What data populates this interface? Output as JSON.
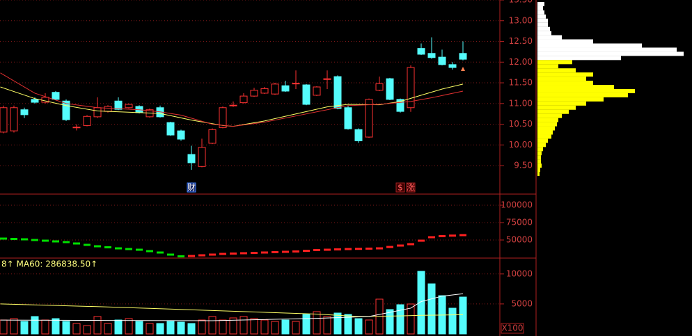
{
  "chart_data": [
    {
      "type": "candlestick",
      "open": [
        10.31,
        10.34,
        10.85,
        11.1,
        11.03,
        11.27,
        11.06,
        10.42,
        10.47,
        10.68,
        10.81,
        11.06,
        10.9,
        10.93,
        10.68,
        10.9,
        10.54,
        10.34,
        9.77,
        9.48,
        10.04,
        10.42,
        10.95,
        11.02,
        11.18,
        11.25,
        11.23,
        11.43,
        11.48,
        11.45,
        11.2,
        11.58,
        11.65,
        10.9,
        10.37,
        10.19,
        11.32,
        11.6,
        11.1,
        10.9,
        12.33,
        12.21,
        12.12,
        11.94,
        12.21
      ],
      "high": [
        10.95,
        10.95,
        10.9,
        11.15,
        11.25,
        11.3,
        11.1,
        10.5,
        10.72,
        11.15,
        10.96,
        11.15,
        11.0,
        10.96,
        10.88,
        10.95,
        10.56,
        10.37,
        9.98,
        10.15,
        10.4,
        10.93,
        11.05,
        11.25,
        11.38,
        11.4,
        11.5,
        11.55,
        11.8,
        11.47,
        11.42,
        11.8,
        11.68,
        10.95,
        10.4,
        11.12,
        11.65,
        11.62,
        11.12,
        11.92,
        12.45,
        12.6,
        12.3,
        12.0,
        12.5
      ],
      "low": [
        10.28,
        10.3,
        10.65,
        11.0,
        11.0,
        11.08,
        10.58,
        10.35,
        10.45,
        10.65,
        10.78,
        10.84,
        10.88,
        10.76,
        10.66,
        10.66,
        10.22,
        10.1,
        9.4,
        9.46,
        10.02,
        10.4,
        10.92,
        11.0,
        11.16,
        11.23,
        11.21,
        11.28,
        11.35,
        10.96,
        11.18,
        11.35,
        10.86,
        10.37,
        10.05,
        10.17,
        11.3,
        11.08,
        10.78,
        10.8,
        12.17,
        12.08,
        11.92,
        11.82,
        12.04
      ],
      "close": [
        10.9,
        10.9,
        10.73,
        11.03,
        11.15,
        11.1,
        10.61,
        10.43,
        10.69,
        10.9,
        10.93,
        10.86,
        10.98,
        10.78,
        10.85,
        10.68,
        10.24,
        10.14,
        9.57,
        9.94,
        10.37,
        10.9,
        10.96,
        11.18,
        11.32,
        11.36,
        11.47,
        11.3,
        11.49,
        10.98,
        11.4,
        11.6,
        10.88,
        10.39,
        10.1,
        11.1,
        11.48,
        11.1,
        10.81,
        11.87,
        12.19,
        12.11,
        11.94,
        11.87,
        12.07
      ],
      "up_color": "#ff3232",
      "down_color": "#54fcfc",
      "ylim": [
        8.83,
        13.5
      ],
      "yticks": [
        {
          "value": 9.5,
          "label": "9.50"
        },
        {
          "value": 10,
          "label": "10.00"
        },
        {
          "value": 10.5,
          "label": "10.50"
        },
        {
          "value": 11,
          "label": "11.00"
        },
        {
          "value": 11.5,
          "label": "11.50"
        },
        {
          "value": 12,
          "label": "12.00"
        },
        {
          "value": 12.5,
          "label": "12.50"
        },
        {
          "value": 13,
          "label": "13.00"
        },
        {
          "value": 13.5,
          "label": "13.50"
        }
      ],
      "grid": true,
      "lines": [
        {
          "color": "#ffff66",
          "x": [
            -0.3,
            3,
            6,
            9,
            13,
            15,
            18,
            21,
            22,
            25,
            28,
            31,
            33,
            36,
            38,
            40,
            42,
            44
          ],
          "values": [
            11.4,
            11.12,
            10.95,
            10.82,
            10.78,
            10.76,
            10.6,
            10.47,
            10.45,
            10.58,
            10.75,
            10.92,
            10.98,
            10.97,
            11.05,
            11.2,
            11.35,
            11.47
          ]
        },
        {
          "color": "#e03030",
          "x": [
            -0.3,
            3,
            6,
            9,
            13,
            15,
            17,
            20,
            22,
            25,
            28,
            31,
            33,
            36,
            39,
            41,
            44
          ],
          "values": [
            11.74,
            11.25,
            11.0,
            10.9,
            10.85,
            10.8,
            10.72,
            10.5,
            10.45,
            10.55,
            10.7,
            10.85,
            10.95,
            10.98,
            11.05,
            11.14,
            11.3
          ]
        }
      ],
      "annotations": [
        {
          "index": 18,
          "label": "财"
        },
        {
          "index": 38,
          "label": "$"
        },
        {
          "index": 39,
          "label": "涨"
        }
      ],
      "volume_profile": {
        "prices": [
          13.4,
          13.3,
          13.2,
          13.1,
          13.0,
          12.9,
          12.8,
          12.7,
          12.6,
          12.5,
          12.4,
          12.3,
          12.2,
          12.1,
          12.0,
          11.9,
          11.8,
          11.7,
          11.6,
          11.5,
          11.4,
          11.3,
          11.2,
          11.1,
          11.0,
          10.9,
          10.8,
          10.7,
          10.6,
          10.5,
          10.4,
          10.3,
          10.2,
          10.1,
          10.0,
          9.9,
          9.8,
          9.7,
          9.6,
          9.5,
          9.4,
          9.3
        ],
        "values": [
          10,
          8,
          10,
          12,
          15,
          15,
          18,
          20,
          35,
          80,
          150,
          200,
          210,
          120,
          50,
          30,
          55,
          80,
          70,
          80,
          110,
          140,
          130,
          95,
          70,
          55,
          45,
          35,
          30,
          28,
          25,
          22,
          20,
          15,
          12,
          8,
          6,
          5,
          5,
          6,
          4,
          3
        ],
        "upper_color": "#ffffff",
        "lower_color": "#ffff00",
        "split_price": 12.05
      }
    },
    {
      "type": "line",
      "values": [
        52000,
        51500,
        51000,
        50000,
        49000,
        48000,
        47000,
        45000,
        43000,
        41000,
        39500,
        38000,
        37000,
        36000,
        34000,
        32000,
        29000,
        26500,
        27000,
        28000,
        29000,
        30000,
        30500,
        31000,
        31500,
        32000,
        32500,
        33000,
        33500,
        34500,
        35500,
        36000,
        36500,
        37000,
        37300,
        37600,
        38000,
        40000,
        42000,
        44000,
        49000,
        54000,
        55500,
        56300,
        57000
      ],
      "rise_color": "#ff2020",
      "fall_color": "#00e000",
      "ylim": [
        25000,
        115000
      ],
      "yticks": [
        50000,
        75000,
        100000
      ],
      "grid": true
    },
    {
      "type": "bar",
      "values": [
        2320,
        2552,
        2088,
        2900,
        2320,
        2552,
        2088,
        1740,
        1392,
        2900,
        1740,
        2320,
        2552,
        2088,
        1740,
        1740,
        2088,
        1972,
        1740,
        2320,
        2900,
        2320,
        2668,
        2900,
        2552,
        2320,
        2088,
        2320,
        2088,
        3248,
        3712,
        2900,
        3480,
        3248,
        2552,
        2320,
        5800,
        4060,
        4872,
        4988,
        10440,
        8352,
        6380,
        4292,
        6148
      ],
      "ylim": [
        0,
        12530
      ],
      "yticks": [
        5000,
        10000
      ],
      "grid": true,
      "unit_label": "X100",
      "legend_text": "8↑ MA60: 286838.50↑",
      "lines": [
        {
          "color": "#ffff66",
          "x": [
            -0.3,
            10,
            20,
            30,
            34,
            38,
            40,
            44
          ],
          "values": [
            5000,
            4500,
            3900,
            3300,
            2900,
            3000,
            3100,
            3200
          ]
        },
        {
          "color": "#ffffff",
          "x": [
            -0.3,
            10,
            20,
            30,
            35,
            37,
            39,
            40,
            42,
            44
          ],
          "values": [
            2300,
            2250,
            2200,
            2600,
            2900,
            3600,
            4300,
            5400,
            6300,
            6700
          ]
        }
      ]
    }
  ]
}
